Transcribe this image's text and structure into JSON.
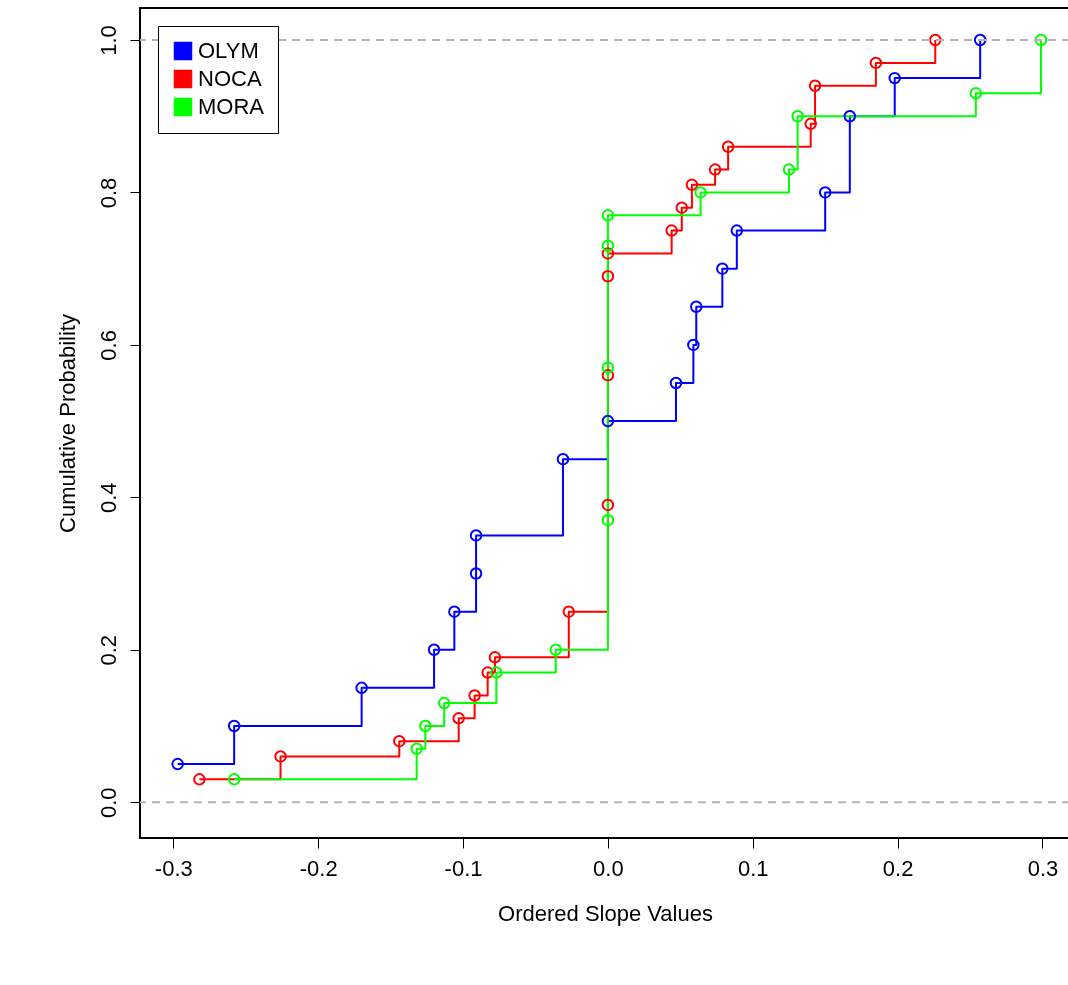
{
  "chart_data": {
    "type": "step",
    "xlabel": "Ordered Slope Values",
    "ylabel": "Cumulative Probability",
    "marker": "circle",
    "line_style": "solid",
    "legend": "top left",
    "xlim": [
      -0.323,
      0.319
    ],
    "ylim": [
      -0.047,
      1.042
    ],
    "xticks": [
      {
        "value": -0.3,
        "label": "-0.3"
      },
      {
        "value": -0.2,
        "label": "-0.2"
      },
      {
        "value": -0.1,
        "label": "-0.1"
      },
      {
        "value": 0,
        "label": "0.0"
      },
      {
        "value": 0.1,
        "label": "0.1"
      },
      {
        "value": 0.2,
        "label": "0.2"
      },
      {
        "value": 0.3,
        "label": "0.3"
      }
    ],
    "yticks": [
      {
        "value": 0,
        "label": "0.0"
      },
      {
        "value": 0.2,
        "label": "0.2"
      },
      {
        "value": 0.4,
        "label": "0.4"
      },
      {
        "value": 0.6,
        "label": "0.6"
      },
      {
        "value": 0.8,
        "label": "0.8"
      },
      {
        "value": 1,
        "label": "1.0"
      }
    ],
    "ref_lines": [
      {
        "axis": "y",
        "value": 0,
        "label": null,
        "color": "#b3b3b3",
        "line_style": "dashed"
      },
      {
        "axis": "y",
        "value": 1,
        "label": null,
        "color": "#b3b3b3",
        "line_style": "dashed"
      }
    ],
    "series": [
      {
        "name": "OLYM",
        "color": "#0000ff",
        "x": [
          -0.297,
          -0.258,
          -0.17,
          -0.12,
          -0.106,
          -0.091,
          -0.091,
          -0.031,
          0,
          0.047,
          0.059,
          0.061,
          0.079,
          0.089,
          0.15,
          0.167,
          0.198,
          0.257
        ],
        "values": [
          0.05,
          0.1,
          0.15,
          0.2,
          0.25,
          0.3,
          0.35,
          0.45,
          0.5,
          0.55,
          0.6,
          0.65,
          0.7,
          0.75,
          0.8,
          0.9,
          0.95,
          1.0
        ]
      },
      {
        "name": "NOCA",
        "color": "#ff0000",
        "x": [
          -0.282,
          -0.226,
          -0.144,
          -0.103,
          -0.092,
          -0.083,
          -0.078,
          -0.027,
          0,
          0,
          0,
          0,
          0.044,
          0.051,
          0.058,
          0.074,
          0.083,
          0.14,
          0.143,
          0.185,
          0.226
        ],
        "values": [
          0.03,
          0.06,
          0.08,
          0.11,
          0.14,
          0.17,
          0.19,
          0.25,
          0.39,
          0.56,
          0.69,
          0.72,
          0.75,
          0.78,
          0.81,
          0.83,
          0.86,
          0.89,
          0.94,
          0.97,
          1.0
        ]
      },
      {
        "name": "MORA",
        "color": "#00ff00",
        "x": [
          -0.258,
          -0.132,
          -0.126,
          -0.113,
          -0.077,
          -0.036,
          0,
          0,
          0,
          0,
          0.064,
          0.125,
          0.131,
          0.254,
          0.299
        ],
        "values": [
          0.03,
          0.07,
          0.1,
          0.13,
          0.17,
          0.2,
          0.37,
          0.57,
          0.73,
          0.77,
          0.8,
          0.83,
          0.9,
          0.93,
          1.0
        ]
      }
    ]
  }
}
